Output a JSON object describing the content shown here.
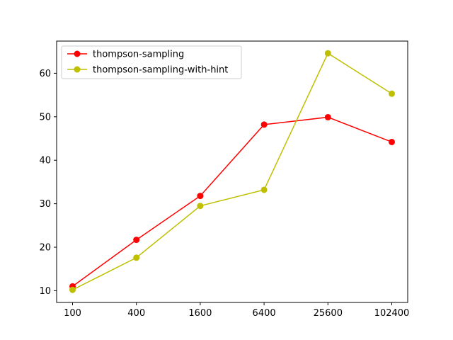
{
  "chart_data": {
    "type": "line",
    "x_scale": "log",
    "x_ticks": [
      "100",
      "400",
      "1600",
      "6400",
      "25600",
      "102400"
    ],
    "xlim": [
      100,
      102400
    ],
    "ylim": [
      7.3,
      67.4
    ],
    "y_ticks": [
      10,
      20,
      30,
      40,
      50,
      60
    ],
    "grid": false,
    "legend_position": "top-left",
    "title": "",
    "xlabel": "",
    "ylabel": "",
    "series": [
      {
        "name": "thompson-sampling",
        "color": "#ff0000",
        "marker": "circle",
        "x": [
          100,
          400,
          1600,
          6400,
          25600,
          102400
        ],
        "values": [
          11.0,
          21.7,
          31.8,
          48.2,
          49.9,
          44.2
        ]
      },
      {
        "name": "thompson-sampling-with-hint",
        "color": "#bfbf00",
        "marker": "circle",
        "x": [
          100,
          400,
          1600,
          6400,
          25600,
          102400
        ],
        "values": [
          10.2,
          17.6,
          29.5,
          33.2,
          64.6,
          55.3
        ]
      }
    ]
  }
}
